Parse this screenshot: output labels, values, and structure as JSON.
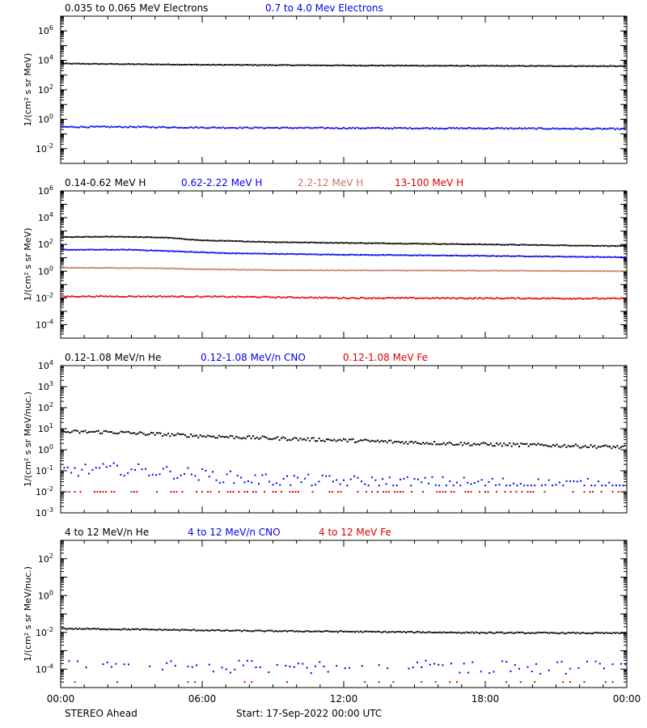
{
  "chart_data": [
    {
      "type": "scatter",
      "log_scale_y": true,
      "ylabel": "1/(cm² s sr MeV)",
      "ylim": [
        0.001,
        10000000
      ],
      "y_tick_exponents": [
        -2,
        0,
        2,
        4,
        6
      ],
      "xlim_hours": [
        0,
        24
      ],
      "series": [
        {
          "name": "0.035 to 0.065 MeV Electrons",
          "color": "#000000",
          "points": [
            [
              0,
              6000
            ],
            [
              6,
              5000
            ],
            [
              12,
              4500
            ],
            [
              18,
              4200
            ],
            [
              24,
              4000
            ]
          ],
          "noise": 0.02,
          "step": 0.08
        },
        {
          "name": "0.7 to 4.0 Mev Electrons",
          "color": "#0000ee",
          "points": [
            [
              0,
              0.3
            ],
            [
              3,
              0.3
            ],
            [
              6,
              0.27
            ],
            [
              12,
              0.25
            ],
            [
              18,
              0.24
            ],
            [
              24,
              0.22
            ]
          ],
          "noise": 0.04,
          "step": 0.08
        }
      ]
    },
    {
      "type": "scatter",
      "log_scale_y": true,
      "ylabel": "1/(cm² s sr MeV)",
      "ylim": [
        1e-05,
        1000000
      ],
      "y_tick_exponents": [
        -4,
        -2,
        0,
        2,
        4,
        6
      ],
      "xlim_hours": [
        0,
        24
      ],
      "series": [
        {
          "name": "0.14-0.62 MeV H",
          "color": "#000000",
          "points": [
            [
              0,
              350
            ],
            [
              2.5,
              380
            ],
            [
              4.5,
              320
            ],
            [
              6,
              200
            ],
            [
              9,
              150
            ],
            [
              12,
              130
            ],
            [
              18,
              100
            ],
            [
              24,
              75
            ]
          ],
          "noise": 0.02,
          "step": 0.08
        },
        {
          "name": "0.62-2.22 MeV H",
          "color": "#0000ee",
          "points": [
            [
              0,
              40
            ],
            [
              3,
              40
            ],
            [
              5,
              30
            ],
            [
              7,
              22
            ],
            [
              12,
              17
            ],
            [
              18,
              14
            ],
            [
              24,
              11
            ]
          ],
          "noise": 0.02,
          "step": 0.08
        },
        {
          "name": "2.2-12 MeV H",
          "color": "#c87864",
          "points": [
            [
              0,
              1.8
            ],
            [
              4,
              1.7
            ],
            [
              6,
              1.4
            ],
            [
              9,
              1.2
            ],
            [
              12,
              1.15
            ],
            [
              18,
              1.1
            ],
            [
              24,
              1.0
            ]
          ],
          "noise": 0.015,
          "step": 0.08
        },
        {
          "name": "13-100 MeV H",
          "color": "#dd0000",
          "points": [
            [
              0,
              0.013
            ],
            [
              4,
              0.013
            ],
            [
              8,
              0.012
            ],
            [
              12,
              0.01
            ],
            [
              18,
              0.0095
            ],
            [
              24,
              0.009
            ]
          ],
          "noise": 0.04,
          "step": 0.08
        }
      ]
    },
    {
      "type": "scatter",
      "log_scale_y": true,
      "ylabel": "1/(cm² s sr MeV/nuc.)",
      "ylim": [
        0.001,
        10000
      ],
      "y_tick_exponents": [
        -3,
        -2,
        -1,
        0,
        1,
        2,
        3,
        4
      ],
      "xlim_hours": [
        0,
        24
      ],
      "series": [
        {
          "name": "0.12-1.08 MeV/n He",
          "color": "#000000",
          "points": [
            [
              0,
              7
            ],
            [
              2,
              7
            ],
            [
              4,
              5.5
            ],
            [
              6,
              4.5
            ],
            [
              9,
              3.5
            ],
            [
              12,
              2.8
            ],
            [
              15,
              2.2
            ],
            [
              18,
              1.8
            ],
            [
              21,
              1.6
            ],
            [
              24,
              1.3
            ]
          ],
          "noise": 0.08,
          "step": 0.08
        },
        {
          "name": "0.12-1.08 MeV/n CNO",
          "color": "#0000ee",
          "points": [
            [
              0,
              0.1
            ],
            [
              2.5,
              0.12
            ],
            [
              5,
              0.08
            ],
            [
              8,
              0.04
            ],
            [
              12,
              0.03
            ],
            [
              18,
              0.025
            ],
            [
              24,
              0.02
            ]
          ],
          "noise": 0.3,
          "step": 0.15,
          "floor": 0.02
        },
        {
          "name": "0.12-1.08 MeV Fe",
          "color": "#dd0000",
          "points": [
            [
              0,
              0.01
            ],
            [
              24,
              0.01
            ]
          ],
          "noise": 0.0,
          "step": 0.12,
          "sparse": 0.5
        }
      ]
    },
    {
      "type": "scatter",
      "log_scale_y": true,
      "ylabel": "1/(cm² s sr MeV/nuc.)",
      "ylim": [
        1e-05,
        1000
      ],
      "y_tick_exponents": [
        -4,
        -2,
        0,
        2
      ],
      "xlim_hours": [
        0,
        24
      ],
      "series": [
        {
          "name": "4 to 12 MeV/n He",
          "color": "#000000",
          "points": [
            [
              0,
              0.016
            ],
            [
              4,
              0.014
            ],
            [
              8,
              0.012
            ],
            [
              12,
              0.011
            ],
            [
              18,
              0.0095
            ],
            [
              24,
              0.009
            ]
          ],
          "noise": 0.03,
          "step": 0.08
        },
        {
          "name": "4 to 12 MeV/n CNO",
          "color": "#0000ee",
          "points": [
            [
              0,
              0.00015
            ],
            [
              24,
              0.00012
            ]
          ],
          "noise": 0.35,
          "step": 0.18,
          "floor": 2e-05,
          "sparse": 0.6
        },
        {
          "name": "4 to 12 MeV Fe",
          "color": "#dd0000",
          "points": [
            [
              0,
              2e-05
            ],
            [
              24,
              2e-05
            ]
          ],
          "noise": 0.0,
          "step": 0.3,
          "sparse": 0.2
        }
      ]
    }
  ],
  "x_axis": {
    "tick_hours": [
      0,
      6,
      12,
      18,
      24
    ],
    "tick_labels": [
      "00:00",
      "06:00",
      "12:00",
      "18:00",
      "00:00"
    ]
  },
  "footer": {
    "spacecraft": "STEREO Ahead",
    "start_text": "Start: 17-Sep-2022 00:00 UTC"
  }
}
